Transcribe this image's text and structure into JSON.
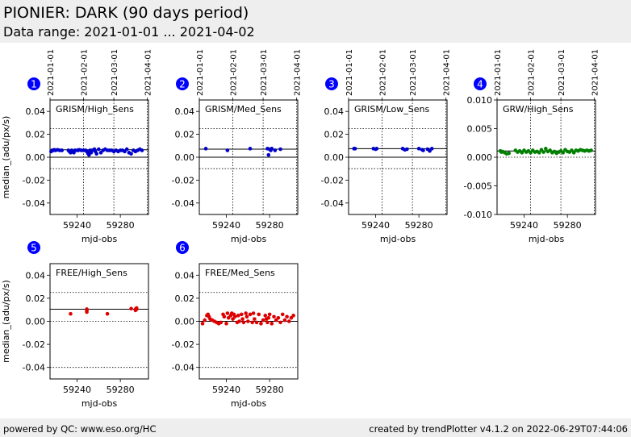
{
  "header": {
    "title": "PIONIER: DARK (90 days period)",
    "subtitle": "Data range: 2021-01-01 ... 2021-04-02"
  },
  "footer": {
    "left": "powered by QC: www.eso.org/HC",
    "right": "created by trendPlotter v4.1.2 on 2022-06-29T07:44:06"
  },
  "colors": {
    "blue": "#0000cc",
    "green": "#008000",
    "red": "#dd0000",
    "badge": "#0000ff"
  },
  "chart_data": [
    {
      "type": "scatter",
      "badge": "1",
      "title": "GRISM/High_Sens",
      "xlabel": "mjd-obs",
      "ylabel": "median_(adu/px/s)",
      "xlim": [
        59215,
        59306
      ],
      "ylim": [
        -0.05,
        0.05
      ],
      "xticks": [
        59240,
        59280
      ],
      "xtick_labels": [
        "59240",
        "59280"
      ],
      "yticks": [
        -0.04,
        -0.02,
        0.0,
        0.02,
        0.04
      ],
      "ytick_labels": [
        "-0.04",
        "-0.02",
        "0.00",
        "0.02",
        "0.04"
      ],
      "date_ticks": [
        59215,
        59246,
        59274,
        59305
      ],
      "date_labels": [
        "2021-01-01",
        "2021-02-01",
        "2021-03-01",
        "2021-04-01"
      ],
      "ref_lines": [
        0.0065,
        0.0
      ],
      "dotted_lines": [
        0.025,
        -0.01
      ],
      "color": "#0000cc",
      "x": [
        59216,
        59217,
        59218,
        59219,
        59220,
        59222,
        59224,
        59226,
        59232,
        59233,
        59234,
        59235,
        59236,
        59237,
        59238,
        59240,
        59241,
        59242,
        59244,
        59246,
        59248,
        59249,
        59250,
        59251,
        59252,
        59253,
        59254,
        59256,
        59257,
        59258,
        59260,
        59262,
        59264,
        59266,
        59268,
        59270,
        59272,
        59274,
        59276,
        59278,
        59280,
        59282,
        59284,
        59286,
        59288,
        59290,
        59292,
        59294,
        59296,
        59298,
        59300
      ],
      "y": [
        0.005,
        0.006,
        0.006,
        0.0065,
        0.006,
        0.0065,
        0.006,
        0.006,
        0.006,
        0.005,
        0.004,
        0.006,
        0.005,
        0.004,
        0.006,
        0.006,
        0.006,
        0.0065,
        0.006,
        0.006,
        0.006,
        0.005,
        0.0035,
        0.002,
        0.006,
        0.004,
        0.006,
        0.007,
        0.005,
        0.003,
        0.007,
        0.004,
        0.006,
        0.007,
        0.006,
        0.006,
        0.006,
        0.005,
        0.006,
        0.005,
        0.006,
        0.006,
        0.005,
        0.007,
        0.004,
        0.003,
        0.006,
        0.005,
        0.006,
        0.007,
        0.006
      ]
    },
    {
      "type": "scatter",
      "badge": "2",
      "title": "GRISM/Med_Sens",
      "xlabel": "mjd-obs",
      "ylabel": "",
      "xlim": [
        59215,
        59306
      ],
      "ylim": [
        -0.05,
        0.05
      ],
      "xticks": [
        59240,
        59280
      ],
      "xtick_labels": [
        "59240",
        "59280"
      ],
      "yticks": [
        -0.04,
        -0.02,
        0.0,
        0.02,
        0.04
      ],
      "ytick_labels": [
        "-0.04",
        "-0.02",
        "0.00",
        "0.02",
        "0.04"
      ],
      "date_ticks": [
        59215,
        59246,
        59274,
        59305
      ],
      "date_labels": [
        "2021-01-01",
        "2021-02-01",
        "2021-03-01",
        "2021-04-01"
      ],
      "ref_lines": [
        0.007,
        0.0
      ],
      "dotted_lines": [
        0.025,
        -0.01
      ],
      "color": "#0000cc",
      "x": [
        59221,
        59241,
        59262,
        59278,
        59279,
        59280,
        59281,
        59282,
        59285,
        59290
      ],
      "y": [
        0.0075,
        0.006,
        0.0075,
        0.0075,
        0.002,
        0.007,
        0.006,
        0.0075,
        0.006,
        0.007
      ]
    },
    {
      "type": "scatter",
      "badge": "3",
      "title": "GRISM/Low_Sens",
      "xlabel": "mjd-obs",
      "ylabel": "",
      "xlim": [
        59215,
        59306
      ],
      "ylim": [
        -0.05,
        0.05
      ],
      "xticks": [
        59240,
        59280
      ],
      "xtick_labels": [
        "59240",
        "59280"
      ],
      "yticks": [
        -0.04,
        -0.02,
        0.0,
        0.02,
        0.04
      ],
      "ytick_labels": [
        "-0.04",
        "-0.02",
        "0.00",
        "0.02",
        "0.04"
      ],
      "date_ticks": [
        59215,
        59246,
        59274,
        59305
      ],
      "date_labels": [
        "2021-01-01",
        "2021-02-01",
        "2021-03-01",
        "2021-04-01"
      ],
      "ref_lines": [
        0.0075,
        0.0
      ],
      "dotted_lines": [
        0.025,
        -0.01
      ],
      "color": "#0000cc",
      "x": [
        59220,
        59221,
        59238,
        59240,
        59241,
        59265,
        59267,
        59269,
        59280,
        59283,
        59284,
        59288,
        59290,
        59292
      ],
      "y": [
        0.0075,
        0.0075,
        0.0075,
        0.007,
        0.0075,
        0.0075,
        0.0065,
        0.007,
        0.0075,
        0.0065,
        0.006,
        0.007,
        0.0055,
        0.0075
      ]
    },
    {
      "type": "scatter",
      "badge": "4",
      "title": "GRW/High_Sens",
      "xlabel": "mjd-obs",
      "ylabel": "",
      "xlim": [
        59215,
        59306
      ],
      "ylim": [
        -0.01,
        0.01
      ],
      "xticks": [
        59240,
        59280
      ],
      "xtick_labels": [
        "59240",
        "59280"
      ],
      "yticks": [
        -0.01,
        -0.005,
        0.0,
        0.005,
        0.01
      ],
      "ytick_labels": [
        "-0.010",
        "-0.005",
        "0.000",
        "0.005",
        "0.010"
      ],
      "date_ticks": [
        59215,
        59246,
        59274,
        59305
      ],
      "date_labels": [
        "2021-01-01",
        "2021-02-01",
        "2021-03-01",
        "2021-04-01"
      ],
      "ref_lines": [
        0.0011
      ],
      "dotted_lines": [
        0.0
      ],
      "color": "#008000",
      "x": [
        59218,
        59219,
        59220,
        59222,
        59224,
        59226,
        59232,
        59234,
        59236,
        59238,
        59240,
        59242,
        59244,
        59246,
        59248,
        59250,
        59252,
        59254,
        59256,
        59258,
        59260,
        59262,
        59264,
        59266,
        59268,
        59270,
        59272,
        59274,
        59276,
        59278,
        59280,
        59282,
        59284,
        59286,
        59288,
        59290,
        59292,
        59294,
        59296,
        59298,
        59300,
        59302
      ],
      "y": [
        0.0011,
        0.0009,
        0.001,
        0.0008,
        0.0006,
        0.0007,
        0.0012,
        0.0009,
        0.0011,
        0.0008,
        0.0012,
        0.0009,
        0.0011,
        0.0008,
        0.0012,
        0.0009,
        0.001,
        0.0008,
        0.0013,
        0.0009,
        0.0015,
        0.001,
        0.0012,
        0.0008,
        0.001,
        0.0007,
        0.0009,
        0.0011,
        0.0008,
        0.0013,
        0.001,
        0.0009,
        0.0012,
        0.0008,
        0.0012,
        0.0011,
        0.0013,
        0.0012,
        0.0011,
        0.0012,
        0.0011,
        0.0012
      ]
    },
    {
      "type": "scatter",
      "badge": "5",
      "title": "FREE/High_Sens",
      "xlabel": "mjd-obs",
      "ylabel": "median_(adu/px/s)",
      "xlim": [
        59215,
        59306
      ],
      "ylim": [
        -0.05,
        0.05
      ],
      "xticks": [
        59240,
        59280
      ],
      "xtick_labels": [
        "59240",
        "59280"
      ],
      "yticks": [
        -0.04,
        -0.02,
        0.0,
        0.02,
        0.04
      ],
      "ytick_labels": [
        "-0.04",
        "-0.02",
        "0.00",
        "0.02",
        "0.04"
      ],
      "date_ticks": [],
      "date_labels": [],
      "ref_lines": [
        0.0105
      ],
      "dotted_lines": [
        0.025,
        0.0,
        -0.04
      ],
      "color": "#dd0000",
      "x": [
        59234,
        59249,
        59249,
        59249,
        59268,
        59290,
        59294,
        59294,
        59295,
        59295
      ],
      "y": [
        0.0065,
        0.008,
        0.0095,
        0.0105,
        0.0065,
        0.011,
        0.0095,
        0.0105,
        0.0115,
        0.0105
      ]
    },
    {
      "type": "scatter",
      "badge": "6",
      "title": "FREE/Med_Sens",
      "xlabel": "mjd-obs",
      "ylabel": "",
      "xlim": [
        59215,
        59306
      ],
      "ylim": [
        -0.05,
        0.05
      ],
      "xticks": [
        59240,
        59280
      ],
      "xtick_labels": [
        "59240",
        "59280"
      ],
      "yticks": [
        -0.04,
        -0.02,
        0.0,
        0.02,
        0.04
      ],
      "ytick_labels": [
        "-0.04",
        "-0.02",
        "0.00",
        "0.02",
        "0.04"
      ],
      "date_ticks": [],
      "date_labels": [],
      "ref_lines": [
        0.0
      ],
      "dotted_lines": [
        0.025,
        -0.04
      ],
      "color": "#dd0000",
      "x": [
        59218,
        59220,
        59222,
        59223,
        59224,
        59225,
        59227,
        59229,
        59231,
        59233,
        59235,
        59237,
        59238,
        59240,
        59241,
        59242,
        59244,
        59245,
        59246,
        59247,
        59248,
        59250,
        59251,
        59252,
        59254,
        59255,
        59256,
        59258,
        59259,
        59260,
        59262,
        59264,
        59265,
        59266,
        59268,
        59270,
        59272,
        59274,
        59276,
        59277,
        59278,
        59279,
        59280,
        59282,
        59284,
        59286,
        59288,
        59290,
        59292,
        59294,
        59296,
        59298,
        59300,
        59302
      ],
      "y": [
        -0.002,
        0.001,
        0.005,
        0.006,
        0.004,
        0.002,
        0.001,
        0.0,
        -0.001,
        -0.002,
        -0.001,
        0.006,
        0.004,
        -0.002,
        0.007,
        0.003,
        0.005,
        0.007,
        0.002,
        0.006,
        0.004,
        -0.001,
        0.005,
        0.0,
        0.006,
        0.002,
        -0.001,
        0.007,
        0.004,
        0.0,
        0.006,
        -0.001,
        0.007,
        0.002,
        -0.001,
        0.006,
        -0.002,
        0.001,
        0.005,
        0.002,
        -0.001,
        0.003,
        0.006,
        -0.002,
        0.004,
        0.001,
        0.003,
        -0.001,
        0.006,
        0.001,
        0.004,
        0.0,
        0.003,
        0.005
      ]
    }
  ]
}
